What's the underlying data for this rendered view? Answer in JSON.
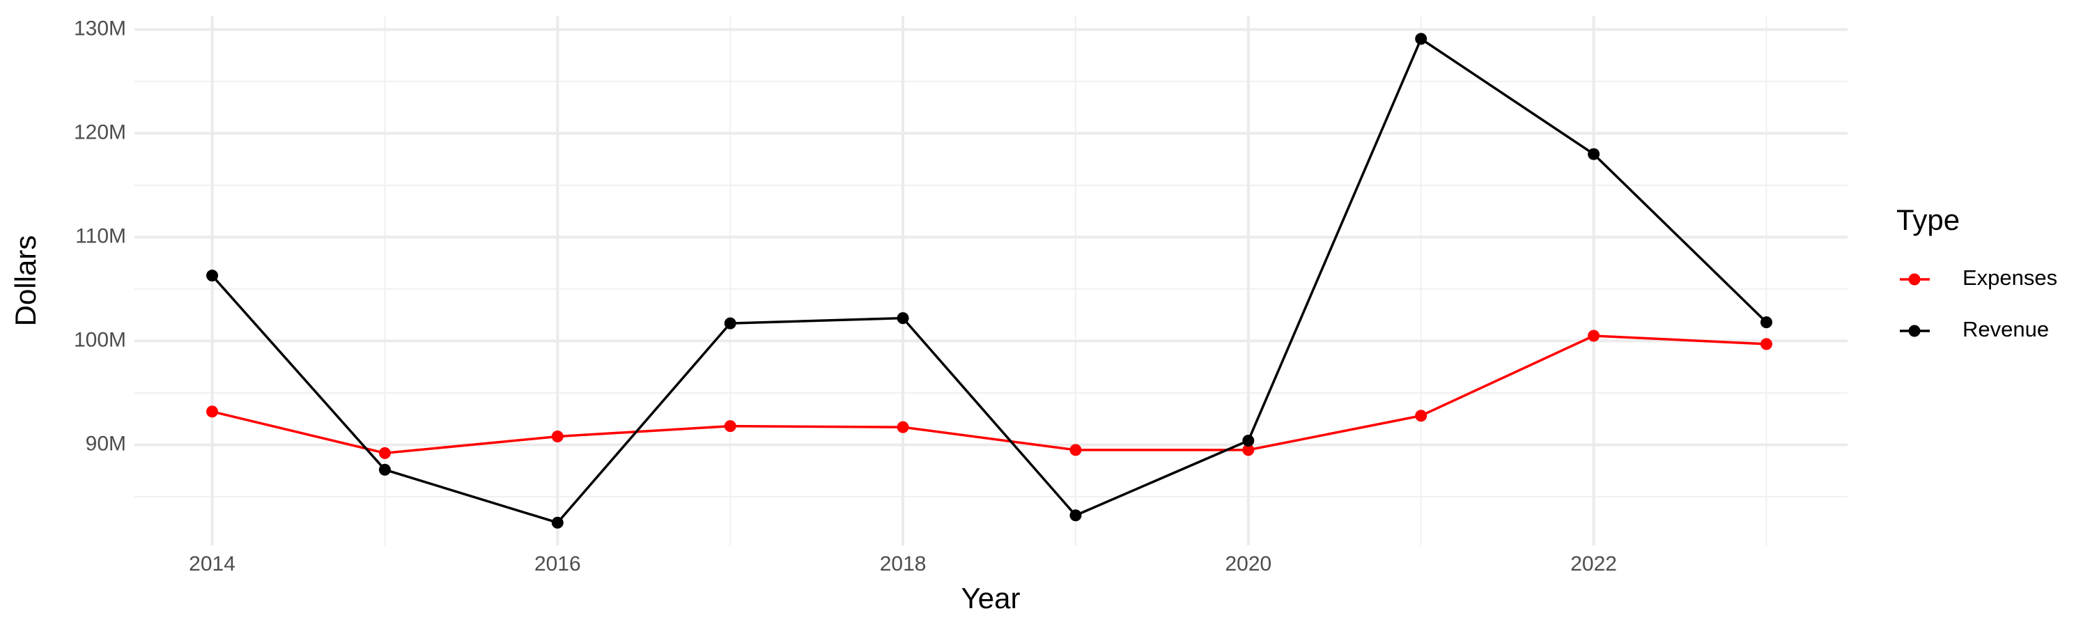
{
  "chart_data": {
    "type": "line",
    "x": [
      2014,
      2015,
      2016,
      2017,
      2018,
      2019,
      2020,
      2021,
      2022,
      2023
    ],
    "series": [
      {
        "name": "Expenses",
        "color": "#ff0000",
        "values": [
          93200000,
          89200000,
          90800000,
          91800000,
          91700000,
          89500000,
          89500000,
          92800000,
          100500000,
          99700000
        ]
      },
      {
        "name": "Revenue",
        "color": "#000000",
        "values": [
          106300000,
          87600000,
          82500000,
          101700000,
          102200000,
          83200000,
          90400000,
          129100000,
          118000000,
          101800000
        ]
      }
    ],
    "xlabel": "Year",
    "ylabel": "Dollars",
    "legend_title": "Type",
    "legend": "right",
    "xlim": [
      2013.55,
      2023.47
    ],
    "xticks": [
      2014,
      2016,
      2018,
      2020,
      2022
    ],
    "xminor": [
      2015,
      2017,
      2019,
      2021,
      2023
    ],
    "ylim": [
      80300000,
      131300000
    ],
    "yticks": [
      {
        "value": 90000000,
        "label": "90M"
      },
      {
        "value": 100000000,
        "label": "100M"
      },
      {
        "value": 110000000,
        "label": "110M"
      },
      {
        "value": 120000000,
        "label": "120M"
      },
      {
        "value": 130000000,
        "label": "130M"
      }
    ],
    "yminor": [
      85000000,
      95000000,
      105000000,
      115000000,
      125000000
    ],
    "grid": true
  }
}
